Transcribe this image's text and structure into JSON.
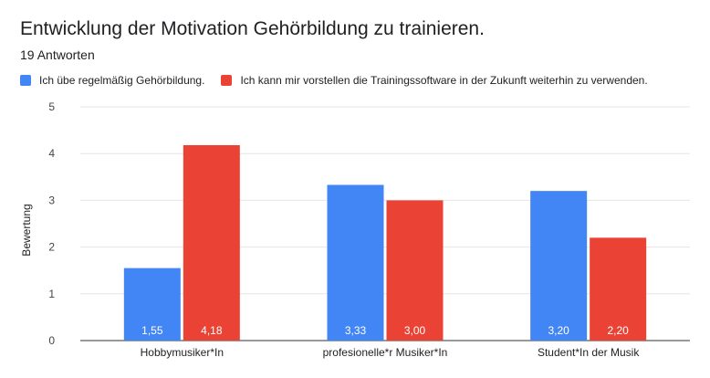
{
  "header": {
    "title": "Entwicklung der Motivation Gehörbildung zu trainieren.",
    "subtitle": "19 Antworten"
  },
  "colors": {
    "series1": "#4285f4",
    "series2": "#ea4335",
    "grid": "#e6e6e6",
    "axis": "#333333"
  },
  "chart_data": {
    "type": "bar",
    "title": "Entwicklung der Motivation Gehörbildung zu trainieren.",
    "subtitle": "19 Antworten",
    "xlabel": "",
    "ylabel": "Bewertung",
    "ylim": [
      0,
      5
    ],
    "yticks": [
      "0",
      "1",
      "2",
      "3",
      "4",
      "5"
    ],
    "grid": true,
    "legend_position": "top-left",
    "categories": [
      "Hobbymusiker*In",
      "profesionelle*r Musiker*In",
      "Student*In der Musik"
    ],
    "series": [
      {
        "name": "Ich übe regelmäßig Gehörbildung.",
        "color": "#4285f4",
        "values": [
          1.55,
          3.33,
          3.2
        ],
        "labels": [
          "1,55",
          "3,33",
          "3,20"
        ]
      },
      {
        "name": "Ich kann mir vorstellen die Trainingssoftware in der Zukunft weiterhin zu verwenden.",
        "color": "#ea4335",
        "values": [
          4.18,
          3.0,
          2.2
        ],
        "labels": [
          "4,18",
          "3,00",
          "2,20"
        ]
      }
    ]
  }
}
